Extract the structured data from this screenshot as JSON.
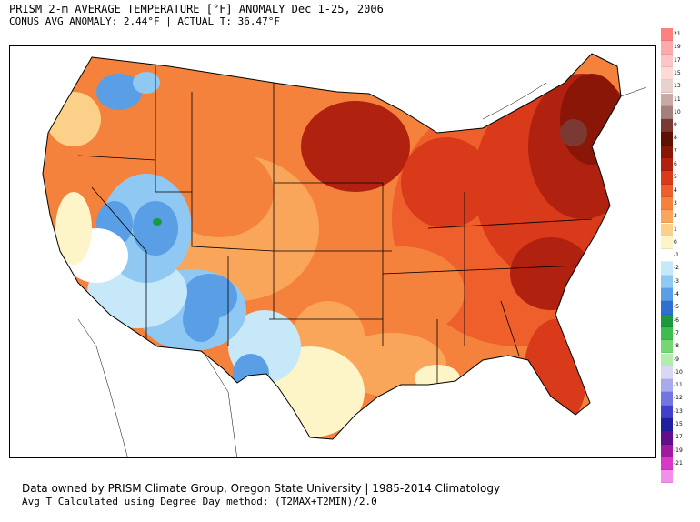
{
  "header": {
    "title": "PRISM 2-m AVERAGE TEMPERATURE [°F] ANOMALY Dec 1-25, 2006",
    "subtitle": "CONUS AVG ANOMALY: 2.44°F | ACTUAL T: 36.47°F"
  },
  "footer": {
    "line1": "Data owned by PRISM Climate Group, Oregon State University | 1985-2014 Climatology",
    "line2": "Avg T Calculated using Degree Day method: (T2MAX+T2MIN)/2.0"
  },
  "legend": {
    "entries": [
      {
        "label": "21",
        "color": "#ff8080"
      },
      {
        "label": "19",
        "color": "#ffaaaa"
      },
      {
        "label": "17",
        "color": "#ffc4c4"
      },
      {
        "label": "15",
        "color": "#ffd8d8"
      },
      {
        "label": "13",
        "color": "#e9d1cf"
      },
      {
        "label": "11",
        "color": "#c8a9a6"
      },
      {
        "label": "10",
        "color": "#a47f7b"
      },
      {
        "label": "9",
        "color": "#7a3a33"
      },
      {
        "label": "8",
        "color": "#5e1206"
      },
      {
        "label": "7",
        "color": "#8a1608"
      },
      {
        "label": "6",
        "color": "#b02110"
      },
      {
        "label": "5",
        "color": "#d83a1a"
      },
      {
        "label": "4",
        "color": "#ef5f2c"
      },
      {
        "label": "3",
        "color": "#f5823c"
      },
      {
        "label": "2",
        "color": "#f9a65a"
      },
      {
        "label": "1",
        "color": "#fbd089"
      },
      {
        "label": "0",
        "color": "#fdf5c8"
      },
      {
        "label": "-1",
        "color": "#ffffff"
      },
      {
        "label": "-2",
        "color": "#c6e8f9"
      },
      {
        "label": "-3",
        "color": "#8fc8f2"
      },
      {
        "label": "-4",
        "color": "#5a9fe6"
      },
      {
        "label": "-5",
        "color": "#2e6fd0"
      },
      {
        "label": "-6",
        "color": "#1a9a3c"
      },
      {
        "label": "-7",
        "color": "#3ebd4c"
      },
      {
        "label": "-8",
        "color": "#74d773"
      },
      {
        "label": "-9",
        "color": "#b1edad"
      },
      {
        "label": "-10",
        "color": "#d8d8f6"
      },
      {
        "label": "-11",
        "color": "#a9a9ee"
      },
      {
        "label": "-12",
        "color": "#7474e2"
      },
      {
        "label": "-13",
        "color": "#4040cc"
      },
      {
        "label": "-15",
        "color": "#20209e"
      },
      {
        "label": "-17",
        "color": "#60108c"
      },
      {
        "label": "-19",
        "color": "#a01a9e"
      },
      {
        "label": "-21",
        "color": "#d838c8"
      },
      {
        "label": "",
        "color": "#f090e8"
      }
    ]
  }
}
